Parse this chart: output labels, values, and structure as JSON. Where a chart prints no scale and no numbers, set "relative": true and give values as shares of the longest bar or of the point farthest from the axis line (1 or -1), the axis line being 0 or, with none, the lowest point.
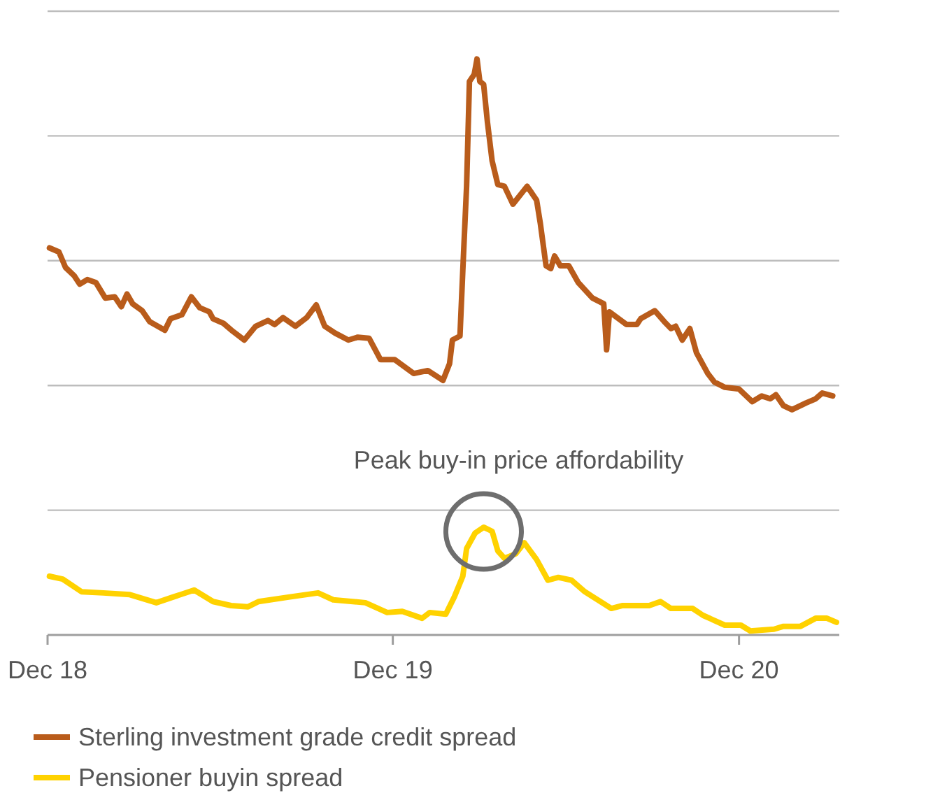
{
  "chart_data": {
    "type": "line",
    "relative": true,
    "grid": "y",
    "legend": "bottom",
    "line_style": "solid",
    "xlim": [
      "2018-12-01",
      "2021-03-17"
    ],
    "xticks": [
      {
        "value": "2018-12-01",
        "label": "Dec 18"
      },
      {
        "value": "2019-12-01",
        "label": "Dec 19"
      },
      {
        "value": "2020-12-01",
        "label": "Dec 20"
      }
    ],
    "annotations": [
      {
        "text": "Peak buy-in price affordability",
        "x": "2020-03-06",
        "y": 0.187
      }
    ],
    "series": [
      {
        "name": "Sterling investment grade credit spread",
        "color": "#b95c1b",
        "x": [
          "2018-12-03",
          "2018-12-13",
          "2018-12-20",
          "2018-12-29",
          "2019-01-04",
          "2019-01-12",
          "2019-01-21",
          "2019-01-31",
          "2019-02-10",
          "2019-02-17",
          "2019-02-23",
          "2019-03-01",
          "2019-03-11",
          "2019-03-19",
          "2019-04-04",
          "2019-04-10",
          "2019-04-22",
          "2019-05-02",
          "2019-05-11",
          "2019-05-21",
          "2019-05-25",
          "2019-06-05",
          "2019-06-15",
          "2019-06-27",
          "2019-07-09",
          "2019-07-22",
          "2019-07-29",
          "2019-08-07",
          "2019-08-20",
          "2019-09-01",
          "2019-09-11",
          "2019-09-20",
          "2019-10-01",
          "2019-10-15",
          "2019-10-25",
          "2019-11-06",
          "2019-11-18",
          "2019-12-03",
          "2019-12-23",
          "2020-01-07",
          "2020-01-23",
          "2020-01-30",
          "2020-02-02",
          "2020-02-10",
          "2020-02-13",
          "2020-02-17",
          "2020-02-20",
          "2020-02-25",
          "2020-02-28",
          "2020-03-02",
          "2020-03-06",
          "2020-03-10",
          "2020-03-15",
          "2020-03-21",
          "2020-03-28",
          "2020-04-06",
          "2020-04-21",
          "2020-05-01",
          "2020-05-05",
          "2020-05-11",
          "2020-05-16",
          "2020-05-20",
          "2020-05-26",
          "2020-06-04",
          "2020-06-14",
          "2020-06-29",
          "2020-07-11",
          "2020-07-14",
          "2020-07-17",
          "2020-08-04",
          "2020-08-15",
          "2020-08-19",
          "2020-09-03",
          "2020-09-13",
          "2020-09-20",
          "2020-09-25",
          "2020-10-02",
          "2020-10-10",
          "2020-10-17",
          "2020-10-29",
          "2020-11-05",
          "2020-11-16",
          "2020-12-01",
          "2020-12-15",
          "2020-12-25",
          "2021-01-03",
          "2021-01-09",
          "2021-01-17",
          "2021-01-26",
          "2021-02-10",
          "2021-02-20",
          "2021-02-27",
          "2021-03-10"
        ],
        "values": [
          0.672,
          0.665,
          0.638,
          0.624,
          0.609,
          0.617,
          0.612,
          0.585,
          0.587,
          0.57,
          0.592,
          0.575,
          0.563,
          0.544,
          0.529,
          0.549,
          0.556,
          0.587,
          0.568,
          0.561,
          0.549,
          0.541,
          0.527,
          0.512,
          0.536,
          0.546,
          0.539,
          0.551,
          0.536,
          0.551,
          0.573,
          0.536,
          0.524,
          0.512,
          0.517,
          0.515,
          0.478,
          0.478,
          0.454,
          0.459,
          0.442,
          0.471,
          0.512,
          0.519,
          0.633,
          0.779,
          0.961,
          0.973,
          1.0,
          0.961,
          0.956,
          0.891,
          0.823,
          0.782,
          0.779,
          0.748,
          0.779,
          0.755,
          0.714,
          0.641,
          0.636,
          0.658,
          0.641,
          0.641,
          0.612,
          0.585,
          0.575,
          0.495,
          0.561,
          0.539,
          0.539,
          0.549,
          0.563,
          0.544,
          0.532,
          0.536,
          0.512,
          0.532,
          0.49,
          0.454,
          0.439,
          0.43,
          0.427,
          0.405,
          0.415,
          0.41,
          0.417,
          0.398,
          0.391,
          0.403,
          0.41,
          0.42,
          0.415
        ]
      },
      {
        "name": "Pensioner buyin spread",
        "color": "#ffd200",
        "x": [
          "2018-12-03",
          "2018-12-17",
          "2019-01-06",
          "2019-01-29",
          "2019-02-26",
          "2019-03-26",
          "2019-04-13",
          "2019-05-05",
          "2019-05-25",
          "2019-06-13",
          "2019-07-01",
          "2019-07-12",
          "2019-08-14",
          "2019-09-13",
          "2019-09-29",
          "2019-11-02",
          "2019-11-25",
          "2019-12-11",
          "2020-01-01",
          "2020-01-09",
          "2020-01-26",
          "2020-02-04",
          "2020-02-13",
          "2020-02-17",
          "2020-02-26",
          "2020-03-06",
          "2020-03-15",
          "2020-03-21",
          "2020-03-28",
          "2020-04-09",
          "2020-04-18",
          "2020-05-01",
          "2020-05-13",
          "2020-05-24",
          "2020-06-07",
          "2020-06-21",
          "2020-07-19",
          "2020-07-31",
          "2020-08-28",
          "2020-09-09",
          "2020-09-20",
          "2020-10-13",
          "2020-10-24",
          "2020-11-16",
          "2020-12-03",
          "2020-12-13",
          "2021-01-07",
          "2021-01-17",
          "2021-02-04",
          "2021-02-20",
          "2021-03-04",
          "2021-03-14"
        ],
        "values": [
          0.102,
          0.097,
          0.075,
          0.073,
          0.07,
          0.056,
          0.066,
          0.078,
          0.058,
          0.051,
          0.049,
          0.058,
          0.066,
          0.073,
          0.061,
          0.056,
          0.039,
          0.041,
          0.029,
          0.039,
          0.036,
          0.066,
          0.102,
          0.15,
          0.177,
          0.187,
          0.18,
          0.146,
          0.133,
          0.141,
          0.16,
          0.131,
          0.095,
          0.1,
          0.095,
          0.075,
          0.046,
          0.051,
          0.051,
          0.058,
          0.046,
          0.046,
          0.034,
          0.017,
          0.017,
          0.007,
          0.01,
          0.015,
          0.015,
          0.029,
          0.029,
          0.022
        ]
      }
    ]
  }
}
